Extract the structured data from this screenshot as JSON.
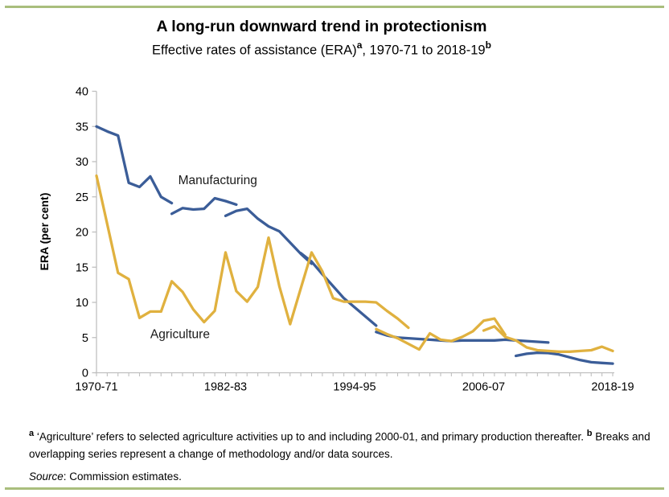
{
  "header": {
    "title": "A long-run downward trend in protectionism",
    "subtitle_pre": "Effective rates of assistance (ERA)",
    "subtitle_sup_a": "a",
    "subtitle_mid": ", 1970-71 to 2018-19",
    "subtitle_sup_b": "b"
  },
  "colors": {
    "manufacturing_blue": "#3B5D98",
    "agriculture_gold": "#E0B13F",
    "border_olive": "#A9BE7D",
    "axis_gray": "#BFBFBF",
    "text_black": "#1A1A1A"
  },
  "chart_data": {
    "type": "line",
    "title": "A long-run downward trend in protectionism",
    "subtitle": "Effective rates of assistance (ERA)a, 1970-71 to 2018-19b",
    "xlabel": "",
    "ylabel": "ERA (per cent)",
    "ylim": [
      0,
      40
    ],
    "yticks": [
      0,
      5,
      10,
      15,
      20,
      25,
      30,
      35,
      40
    ],
    "n_points": 49,
    "x_description": "Annual financial years, one point per year, index 0 = 1970-71 through index 48 = 2018-19",
    "xtick_labels": [
      "1970-71",
      "1982-83",
      "1994-95",
      "2006-07",
      "2018-19"
    ],
    "xtick_indices": [
      0,
      12,
      24,
      36,
      48
    ],
    "grid": false,
    "legend": "in-chart text labels",
    "series": [
      {
        "name": "Manufacturing",
        "color": "#3B5D98",
        "label": {
          "text": "Manufacturing",
          "x": 7.6,
          "y": 26.8
        },
        "segments": [
          [
            [
              0,
              35.0
            ],
            [
              1,
              34.3
            ],
            [
              2,
              33.7
            ],
            [
              3,
              27.0
            ],
            [
              4,
              26.4
            ],
            [
              5,
              27.9
            ],
            [
              6,
              25.0
            ],
            [
              7,
              24.1
            ]
          ],
          [
            [
              7,
              22.6
            ],
            [
              8,
              23.4
            ],
            [
              9,
              23.2
            ],
            [
              10,
              23.3
            ],
            [
              11,
              24.8
            ],
            [
              12,
              24.4
            ],
            [
              13,
              23.9
            ]
          ],
          [
            [
              12,
              22.3
            ],
            [
              13,
              23.0
            ],
            [
              14,
              23.3
            ],
            [
              15,
              21.9
            ],
            [
              16,
              20.8
            ],
            [
              17,
              20.1
            ],
            [
              18,
              18.5
            ],
            [
              19,
              16.9
            ],
            [
              20,
              15.5
            ]
          ],
          [
            [
              19,
              17.0
            ],
            [
              20,
              15.8
            ],
            [
              21,
              14.0
            ],
            [
              22,
              12.3
            ],
            [
              23,
              10.6
            ],
            [
              24,
              9.3
            ],
            [
              25,
              8.0
            ],
            [
              26,
              6.7
            ]
          ],
          [
            [
              26,
              5.8
            ],
            [
              27,
              5.3
            ],
            [
              28,
              5.0
            ],
            [
              29,
              4.9
            ],
            [
              30,
              4.8
            ],
            [
              31,
              4.7
            ],
            [
              32,
              4.6
            ],
            [
              33,
              4.5
            ],
            [
              34,
              4.6
            ],
            [
              35,
              4.6
            ],
            [
              36,
              4.6
            ],
            [
              37,
              4.6
            ],
            [
              38,
              4.7
            ],
            [
              39,
              4.6
            ],
            [
              40,
              4.5
            ],
            [
              41,
              4.4
            ],
            [
              42,
              4.3
            ]
          ],
          [
            [
              39,
              2.4
            ],
            [
              40,
              2.7
            ],
            [
              41,
              2.85
            ],
            [
              42,
              2.8
            ],
            [
              43,
              2.6
            ],
            [
              44,
              2.2
            ],
            [
              45,
              1.8
            ],
            [
              46,
              1.5
            ],
            [
              47,
              1.4
            ],
            [
              48,
              1.3
            ]
          ]
        ]
      },
      {
        "name": "Agriculture",
        "color": "#E0B13F",
        "label": {
          "text": "Agriculture",
          "x": 5.0,
          "y": 4.9
        },
        "segments": [
          [
            [
              0,
              28.0
            ],
            [
              1,
              21.1
            ],
            [
              2,
              14.2
            ],
            [
              3,
              13.3
            ],
            [
              4,
              7.8
            ],
            [
              5,
              8.7
            ],
            [
              6,
              8.7
            ],
            [
              7,
              13.0
            ],
            [
              8,
              11.5
            ],
            [
              9,
              9.0
            ],
            [
              10,
              7.2
            ],
            [
              11,
              8.8
            ],
            [
              12,
              17.1
            ],
            [
              13,
              11.6
            ],
            [
              14,
              10.1
            ],
            [
              15,
              12.2
            ],
            [
              16,
              19.2
            ],
            [
              17,
              12.3
            ],
            [
              18,
              6.9
            ],
            [
              19,
              12.0
            ],
            [
              20,
              17.1
            ],
            [
              21,
              14.4
            ],
            [
              22,
              10.6
            ],
            [
              23,
              10.1
            ],
            [
              24,
              10.1
            ],
            [
              25,
              10.1
            ],
            [
              26,
              10.0
            ],
            [
              27,
              8.8
            ],
            [
              28,
              7.7
            ],
            [
              29,
              6.4
            ]
          ],
          [
            [
              26,
              6.2
            ],
            [
              27,
              5.5
            ],
            [
              28,
              4.9
            ],
            [
              29,
              4.1
            ],
            [
              30,
              3.3
            ],
            [
              31,
              5.6
            ],
            [
              32,
              4.7
            ],
            [
              33,
              4.5
            ],
            [
              34,
              5.1
            ],
            [
              35,
              5.9
            ],
            [
              36,
              7.4
            ],
            [
              37,
              7.7
            ],
            [
              38,
              5.4
            ]
          ],
          [
            [
              36,
              6.0
            ],
            [
              37,
              6.6
            ],
            [
              38,
              5.1
            ],
            [
              39,
              4.6
            ],
            [
              40,
              3.6
            ],
            [
              41,
              3.2
            ],
            [
              42,
              3.1
            ],
            [
              43,
              3.0
            ],
            [
              44,
              3.0
            ],
            [
              45,
              3.1
            ],
            [
              46,
              3.2
            ],
            [
              47,
              3.7
            ],
            [
              48,
              3.1
            ]
          ]
        ]
      }
    ]
  },
  "footnotes": {
    "notes": [
      {
        "marker": "a",
        "text": "‘Agriculture’ refers to selected agriculture activities up to and including 2000-01, and primary production thereafter."
      },
      {
        "marker": "b",
        "text": "Breaks and overlapping series represent a change of methodology and/or data sources."
      }
    ],
    "source_label": "Source",
    "source_rest": ": Commission estimates."
  }
}
